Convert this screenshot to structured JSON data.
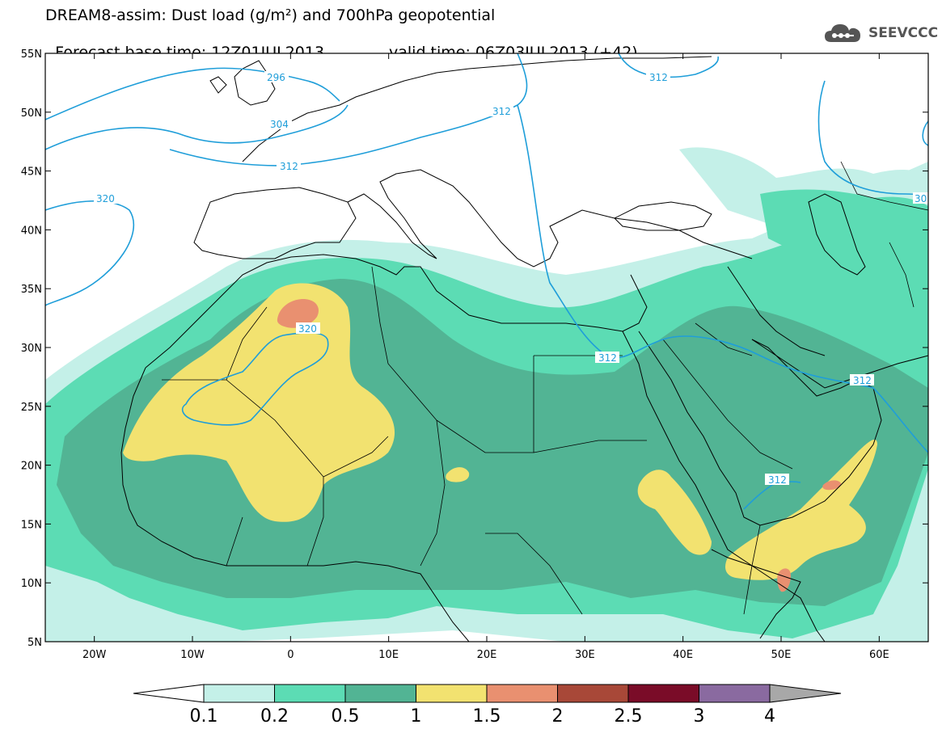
{
  "header": {
    "title_line1": "DREAM8-assim: Dust load (g/m²) and 700hPa geopotential",
    "base_time": "Forecast base time: 12Z01JUL2013",
    "valid_time": "valid time: 06Z03JUL2013 (+42)",
    "logo_text": "SEEVCCC"
  },
  "map": {
    "lon_range": [
      -25,
      65
    ],
    "lat_range": [
      5,
      55
    ],
    "lat_ticks": [
      "55N",
      "50N",
      "45N",
      "40N",
      "35N",
      "30N",
      "25N",
      "20N",
      "15N",
      "10N",
      "5N"
    ],
    "lon_ticks": [
      "20W",
      "10W",
      "0",
      "10E",
      "20E",
      "30E",
      "40E",
      "50E",
      "60E"
    ],
    "contour_labels": [
      "296",
      "304",
      "312",
      "312",
      "312",
      "320",
      "320",
      "312",
      "312",
      "312",
      "30"
    ],
    "contour_color": "#1f9ed9"
  },
  "legend": {
    "levels": [
      "0.1",
      "0.2",
      "0.5",
      "1",
      "1.5",
      "2",
      "2.5",
      "3",
      "4"
    ],
    "colors": [
      "#c4f0e8",
      "#5cdcb4",
      "#52b494",
      "#f2e270",
      "#e99070",
      "#a84838",
      "#7a0c28",
      "#8a6aa0",
      "#a8a8a8"
    ]
  }
}
